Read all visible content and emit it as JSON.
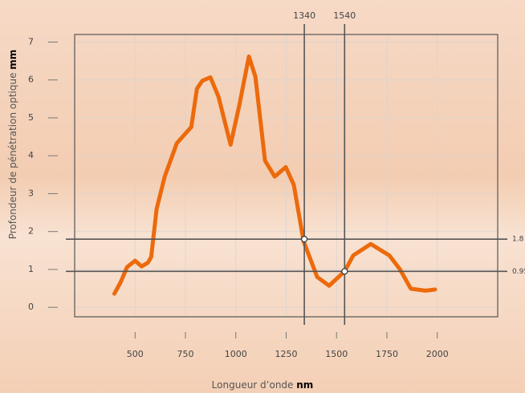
{
  "chart_data": {
    "type": "line",
    "xlabel": "Longueur d’onde",
    "xlabel_unit": "nm",
    "ylabel": "Profondeur de pénétration optique",
    "ylabel_unit": "mm",
    "x": [
      397,
      428,
      460,
      500,
      532,
      564,
      580,
      607,
      647,
      707,
      779,
      807,
      834,
      874,
      914,
      974,
      1018,
      1065,
      1097,
      1145,
      1193,
      1248,
      1288,
      1336,
      1404,
      1463,
      1540,
      1583,
      1670,
      1762,
      1814,
      1869,
      1941,
      1989
    ],
    "values": [
      0.36,
      0.66,
      1.06,
      1.23,
      1.08,
      1.18,
      1.33,
      2.6,
      3.45,
      4.33,
      4.76,
      5.77,
      5.98,
      6.07,
      5.56,
      4.29,
      5.35,
      6.62,
      6.09,
      3.87,
      3.45,
      3.7,
      3.23,
      1.75,
      0.8,
      0.57,
      0.95,
      1.37,
      1.67,
      1.37,
      1.01,
      0.49,
      0.44,
      0.47
    ],
    "color": "#ec6a0c",
    "xlim": [
      200,
      2300
    ],
    "ylim": [
      -0.25,
      7.2
    ],
    "xticks": [
      500,
      750,
      1000,
      1250,
      1500,
      1750,
      2000
    ],
    "yticks": [
      0,
      1,
      2,
      3,
      4,
      5,
      6,
      7
    ],
    "grid": true,
    "vlines": [
      1340,
      1540
    ],
    "hlines": [
      1.8,
      0.95
    ]
  }
}
